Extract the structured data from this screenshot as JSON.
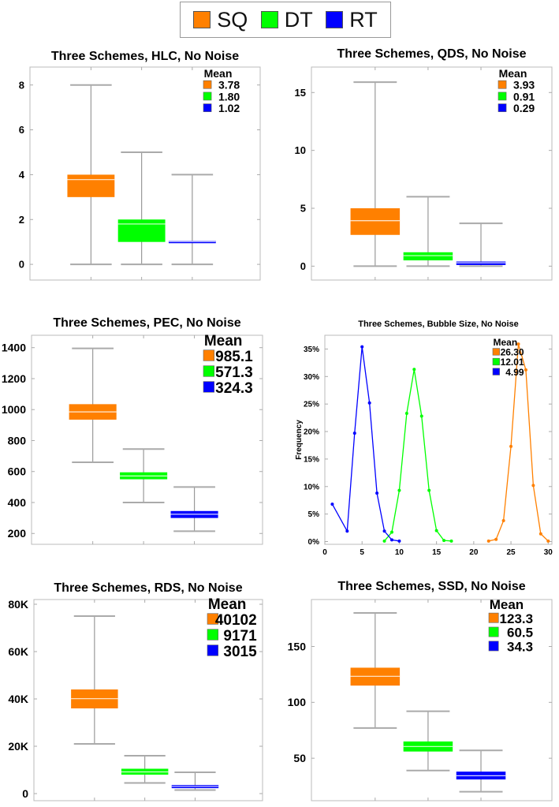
{
  "colors": {
    "SQ": "#ff8000",
    "DT": "#00ff00",
    "RT": "#0000ff"
  },
  "legend": [
    {
      "key": "SQ",
      "label": "SQ"
    },
    {
      "key": "DT",
      "label": "DT"
    },
    {
      "key": "RT",
      "label": "RT"
    }
  ],
  "chart_data": [
    {
      "type": "box",
      "title": "Three Schemes, HLC, No Noise",
      "ylim": [
        -0.7,
        8.8
      ],
      "yticks": [
        0,
        2,
        4,
        6,
        8
      ],
      "ytick_labels": [
        "0",
        "2",
        "4",
        "6",
        "8"
      ],
      "legend_title": "Mean",
      "means": [
        "3.78",
        "1.80",
        "1.02"
      ],
      "series": [
        {
          "name": "SQ",
          "min": 0,
          "q1": 3,
          "q3": 4,
          "max": 8,
          "mean": 3.78
        },
        {
          "name": "DT",
          "min": 0,
          "q1": 1,
          "q3": 2,
          "max": 5,
          "mean": 1.8
        },
        {
          "name": "RT",
          "min": 0,
          "q1": 0.95,
          "q3": 1.05,
          "max": 4,
          "mean": 1.02
        }
      ]
    },
    {
      "type": "box",
      "title": "Three Schemes, QDS, No Noise",
      "ylim": [
        -1.2,
        17.2
      ],
      "yticks": [
        0,
        5,
        10,
        15
      ],
      "ytick_labels": [
        "0",
        "5",
        "10",
        "15"
      ],
      "legend_title": "Mean",
      "means": [
        "3.93",
        "0.91",
        "0.29"
      ],
      "series": [
        {
          "name": "SQ",
          "min": 0,
          "q1": 2.7,
          "q3": 5.0,
          "max": 15.9,
          "mean": 3.93
        },
        {
          "name": "DT",
          "min": 0,
          "q1": 0.5,
          "q3": 1.2,
          "max": 6.0,
          "mean": 0.91
        },
        {
          "name": "RT",
          "min": 0,
          "q1": 0.1,
          "q3": 0.4,
          "max": 3.7,
          "mean": 0.29
        }
      ]
    },
    {
      "type": "box",
      "title": "Three Schemes, PEC, No Noise",
      "ylim": [
        130,
        1480
      ],
      "yticks": [
        200,
        400,
        600,
        800,
        1000,
        1200,
        1400
      ],
      "ytick_labels": [
        "200",
        "400",
        "600",
        "800",
        "1000",
        "1200",
        "1400"
      ],
      "legend_title": "Mean",
      "means": [
        "985.1",
        "571.3",
        "324.3"
      ],
      "series": [
        {
          "name": "SQ",
          "min": 660,
          "q1": 935,
          "q3": 1035,
          "max": 1395,
          "mean": 985.1
        },
        {
          "name": "DT",
          "min": 400,
          "q1": 550,
          "q3": 595,
          "max": 745,
          "mean": 571.3
        },
        {
          "name": "RT",
          "min": 215,
          "q1": 300,
          "q3": 345,
          "max": 500,
          "mean": 324.3
        }
      ]
    },
    {
      "type": "line",
      "title": "Three Schemes, Bubble Size, No Noise",
      "xlim": [
        0,
        30.5
      ],
      "ylim": [
        -0.5,
        37.5
      ],
      "xticks": [
        0,
        5,
        10,
        15,
        20,
        25,
        30
      ],
      "xtick_labels": [
        "0",
        "5",
        "10",
        "15",
        "20",
        "25",
        "30"
      ],
      "yticks": [
        0,
        5,
        10,
        15,
        20,
        25,
        30,
        35
      ],
      "ytick_labels": [
        "0%",
        "5%",
        "10%",
        "15%",
        "20%",
        "25%",
        "30%",
        "35%"
      ],
      "ylabel": "Frequency",
      "legend_title": "Mean",
      "means": [
        "26.30",
        "12.01",
        "4.99"
      ],
      "series": [
        {
          "name": "SQ",
          "x": [
            22,
            23,
            24,
            25,
            26,
            27,
            28,
            29,
            30
          ],
          "y": [
            0.1,
            0.4,
            3.8,
            17.3,
            35.9,
            31.2,
            10.2,
            1.4,
            0.1
          ]
        },
        {
          "name": "DT",
          "x": [
            8,
            9,
            10,
            11,
            12,
            13,
            14,
            15,
            16,
            17
          ],
          "y": [
            0.1,
            1.7,
            9.3,
            23.3,
            31.3,
            22.8,
            9.3,
            2.0,
            0.2,
            0.1
          ]
        },
        {
          "name": "RT",
          "x": [
            1,
            3,
            4,
            5,
            6,
            7,
            8,
            9,
            10
          ],
          "y": [
            6.8,
            1.9,
            19.7,
            35.4,
            25.2,
            8.8,
            1.9,
            0.3,
            0.1
          ]
        }
      ]
    },
    {
      "type": "box",
      "title": "Three Schemes, RDS, No Noise",
      "ylim": [
        -3000,
        82000
      ],
      "yticks": [
        0,
        20000,
        40000,
        60000,
        80000
      ],
      "ytick_labels": [
        "0",
        "20K",
        "40K",
        "60K",
        "80K"
      ],
      "legend_title": "Mean",
      "means": [
        "40102",
        "9171",
        "3015"
      ],
      "series": [
        {
          "name": "SQ",
          "min": 21000,
          "q1": 36000,
          "q3": 44000,
          "max": 75000,
          "mean": 40102
        },
        {
          "name": "DT",
          "min": 4500,
          "q1": 8000,
          "q3": 10500,
          "max": 16000,
          "mean": 9171
        },
        {
          "name": "RT",
          "min": 1500,
          "q1": 2300,
          "q3": 3600,
          "max": 9000,
          "mean": 3015
        }
      ]
    },
    {
      "type": "box",
      "title": "Three Schemes, SSD, No Noise",
      "ylim": [
        12,
        192
      ],
      "yticks": [
        50,
        100,
        150
      ],
      "ytick_labels": [
        "50",
        "100",
        "150"
      ],
      "legend_title": "Mean",
      "means": [
        "123.3",
        "60.5",
        "34.3"
      ],
      "series": [
        {
          "name": "SQ",
          "min": 77,
          "q1": 115,
          "q3": 131,
          "max": 180,
          "mean": 123.3
        },
        {
          "name": "DT",
          "min": 39,
          "q1": 56,
          "q3": 65,
          "max": 92,
          "mean": 60.5
        },
        {
          "name": "RT",
          "min": 20,
          "q1": 31,
          "q3": 38,
          "max": 57,
          "mean": 34.3
        }
      ]
    }
  ]
}
